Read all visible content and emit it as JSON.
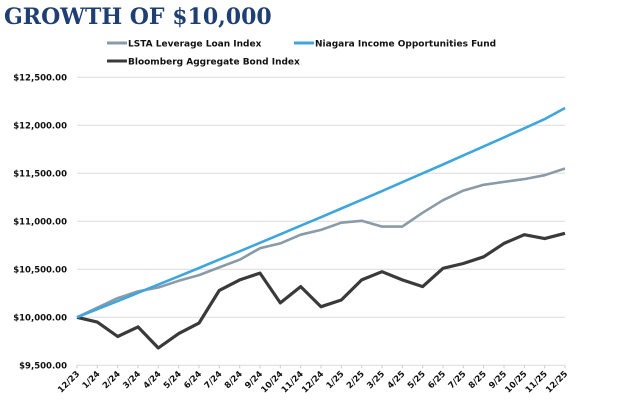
{
  "chart_data": {
    "type": "line",
    "title": "GROWTH OF $10,000",
    "xlabel": "",
    "ylabel": "",
    "ylim": [
      9500,
      12500
    ],
    "yticks": [
      "$9,500.00",
      "$10,000.00",
      "$10,500.00",
      "$11,000.00",
      "$11,500.00",
      "$12,000.00",
      "$12,500.00"
    ],
    "ytick_values": [
      9500,
      10000,
      10500,
      11000,
      11500,
      12000,
      12500
    ],
    "grid": true,
    "legend_position": "top",
    "categories": [
      "12/23",
      "1/24",
      "2/24",
      "3/24",
      "4/24",
      "5/24",
      "6/24",
      "7/24",
      "8/24",
      "9/24",
      "10/24",
      "11/24",
      "12/24",
      "1/25",
      "2/25",
      "3/25",
      "4/25",
      "5/25",
      "6/25",
      "7/25",
      "8/25",
      "9/25",
      "10/25",
      "11/25",
      "12/25"
    ],
    "series": [
      {
        "name": "LSTA Leverage Loan Index",
        "color": "#8a9ba8",
        "values": [
          10000,
          10100,
          10200,
          10270,
          10310,
          10380,
          10440,
          10520,
          10600,
          10720,
          10770,
          10860,
          10910,
          10985,
          11005,
          10945,
          10945,
          11090,
          11220,
          11320,
          11380,
          11410,
          11440,
          11480,
          11550
        ]
      },
      {
        "name": "Niagara Income Opportunities Fund",
        "color": "#3ea6dc",
        "values": [
          10000,
          10084,
          10169,
          10255,
          10341,
          10427,
          10514,
          10601,
          10688,
          10776,
          10865,
          10954,
          11043,
          11133,
          11224,
          11315,
          11407,
          11500,
          11592,
          11686,
          11780,
          11874,
          11969,
          12065,
          12180
        ]
      },
      {
        "name": "Bloomberg Aggregate Bond Index",
        "color": "#3a3a3a",
        "values": [
          10000,
          9950,
          9800,
          9900,
          9680,
          9830,
          9940,
          10280,
          10390,
          10460,
          10150,
          10320,
          10110,
          10180,
          10390,
          10475,
          10390,
          10320,
          10510,
          10560,
          10630,
          10770,
          10860,
          10820,
          10875
        ]
      }
    ]
  }
}
